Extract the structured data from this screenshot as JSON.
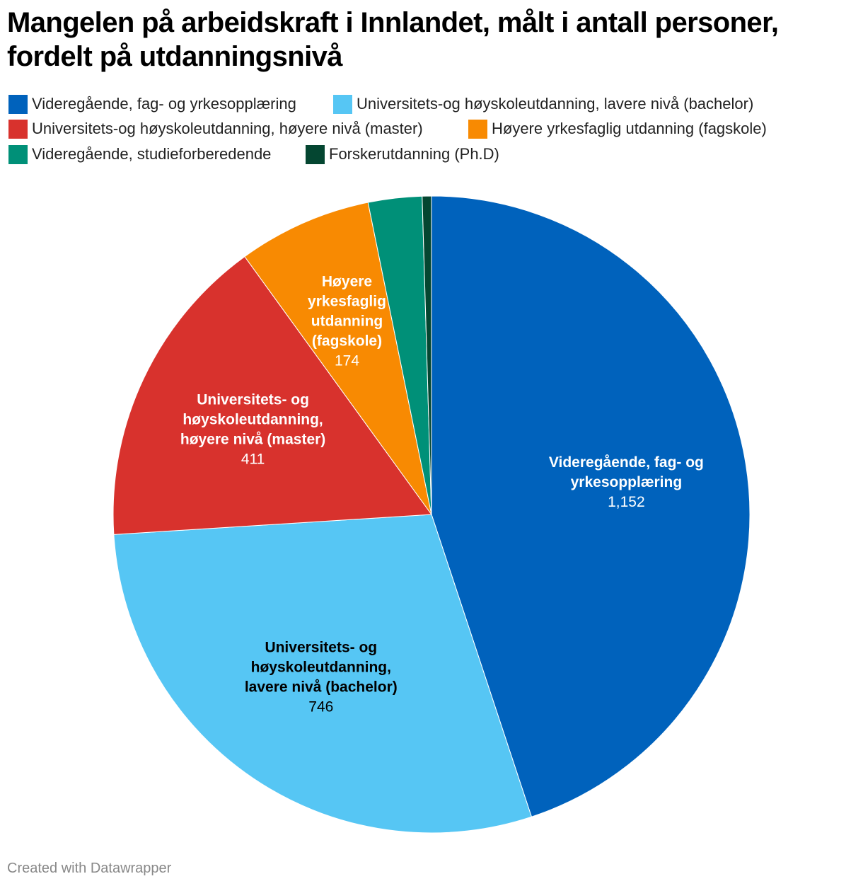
{
  "title": "Mangelen på arbeidskraft i Innlandet, målt i antall personer, fordelt på utdanningsnivå",
  "footer": "Created with Datawrapper",
  "chart_data": {
    "type": "pie",
    "title": "Mangelen på arbeidskraft i Innlandet, målt i antall personer, fordelt på utdanningsnivå",
    "legend_position": "top",
    "slices": [
      {
        "name": "Videregående, fag- og yrkesopplæring",
        "label_lines": [
          "Videregående, fag- og",
          "yrkesopplæring"
        ],
        "value": 1152,
        "value_label": "1,152",
        "color": "#0062bc",
        "text_color": "#ffffff"
      },
      {
        "name": "Universitets-og høyskoleutdanning, lavere nivå (bachelor)",
        "label_lines": [
          "Universitets- og",
          "høyskoleutdanning,",
          "lavere nivå (bachelor)"
        ],
        "value": 746,
        "value_label": "746",
        "color": "#56c6f4",
        "text_color": "#000000"
      },
      {
        "name": "Universitets-og høyskoleutdanning, høyere nivå (master)",
        "label_lines": [
          "Universitets- og",
          "høyskoleutdanning,",
          "høyere nivå (master)"
        ],
        "value": 411,
        "value_label": "411",
        "color": "#d8322d",
        "text_color": "#ffffff"
      },
      {
        "name": "Høyere yrkesfaglig utdanning (fagskole)",
        "label_lines": [
          "Høyere",
          "yrkesfaglig",
          "utdanning",
          "(fagskole)"
        ],
        "value": 174,
        "value_label": "174",
        "color": "#f88a02",
        "text_color": "#ffffff"
      },
      {
        "name": "Videregående, studieforberedende",
        "label_lines": [],
        "value": 70,
        "value_label": "",
        "color": "#009078",
        "text_color": "#ffffff"
      },
      {
        "name": "Forskerutdanning (Ph.D)",
        "label_lines": [],
        "value": 12,
        "value_label": "",
        "color": "#044631",
        "text_color": "#ffffff"
      }
    ]
  }
}
